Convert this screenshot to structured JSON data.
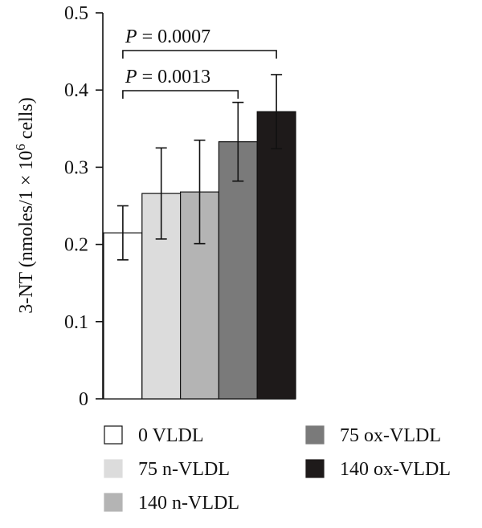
{
  "chart_data": {
    "type": "bar",
    "ylabel": "3-NT (nmoles/1 × 10⁶ cells)",
    "ylabel_parts": {
      "before": "3-NT (nmoles/1 × 10",
      "superscript": "6",
      "after": " cells)"
    },
    "ylim": [
      0,
      0.5
    ],
    "yticks": [
      "0",
      "0.1",
      "0.2",
      "0.3",
      "0.4",
      "0.5"
    ],
    "grid": false,
    "legend_position": "bottom",
    "categories": [
      "0 VLDL",
      "75 n-VLDL",
      "140 n-VLDL",
      "75 ox-VLDL",
      "140 ox-VLDL"
    ],
    "series": [
      {
        "values": [
          0.215,
          0.266,
          0.268,
          0.333,
          0.372
        ],
        "errors": [
          0.035,
          0.059,
          0.067,
          0.051,
          0.048
        ],
        "colors": [
          "#ffffff",
          "#dcdcdc",
          "#b4b4b4",
          "#7a7a7a",
          "#1e1a1a"
        ]
      }
    ],
    "annotations": [
      {
        "label_prefix": "P",
        "label_value": " = 0.0013",
        "from": 0,
        "to": 3
      },
      {
        "label_prefix": "P",
        "label_value": " = 0.0007",
        "from": 0,
        "to": 4
      }
    ],
    "legend_entries": [
      {
        "label": "0 VLDL",
        "color": "#ffffff"
      },
      {
        "label": "75 n-VLDL",
        "color": "#dcdcdc"
      },
      {
        "label": "140 n-VLDL",
        "color": "#b4b4b4"
      },
      {
        "label": "75 ox-VLDL",
        "color": "#7a7a7a"
      },
      {
        "label": "140 ox-VLDL",
        "color": "#1e1a1a"
      }
    ]
  }
}
